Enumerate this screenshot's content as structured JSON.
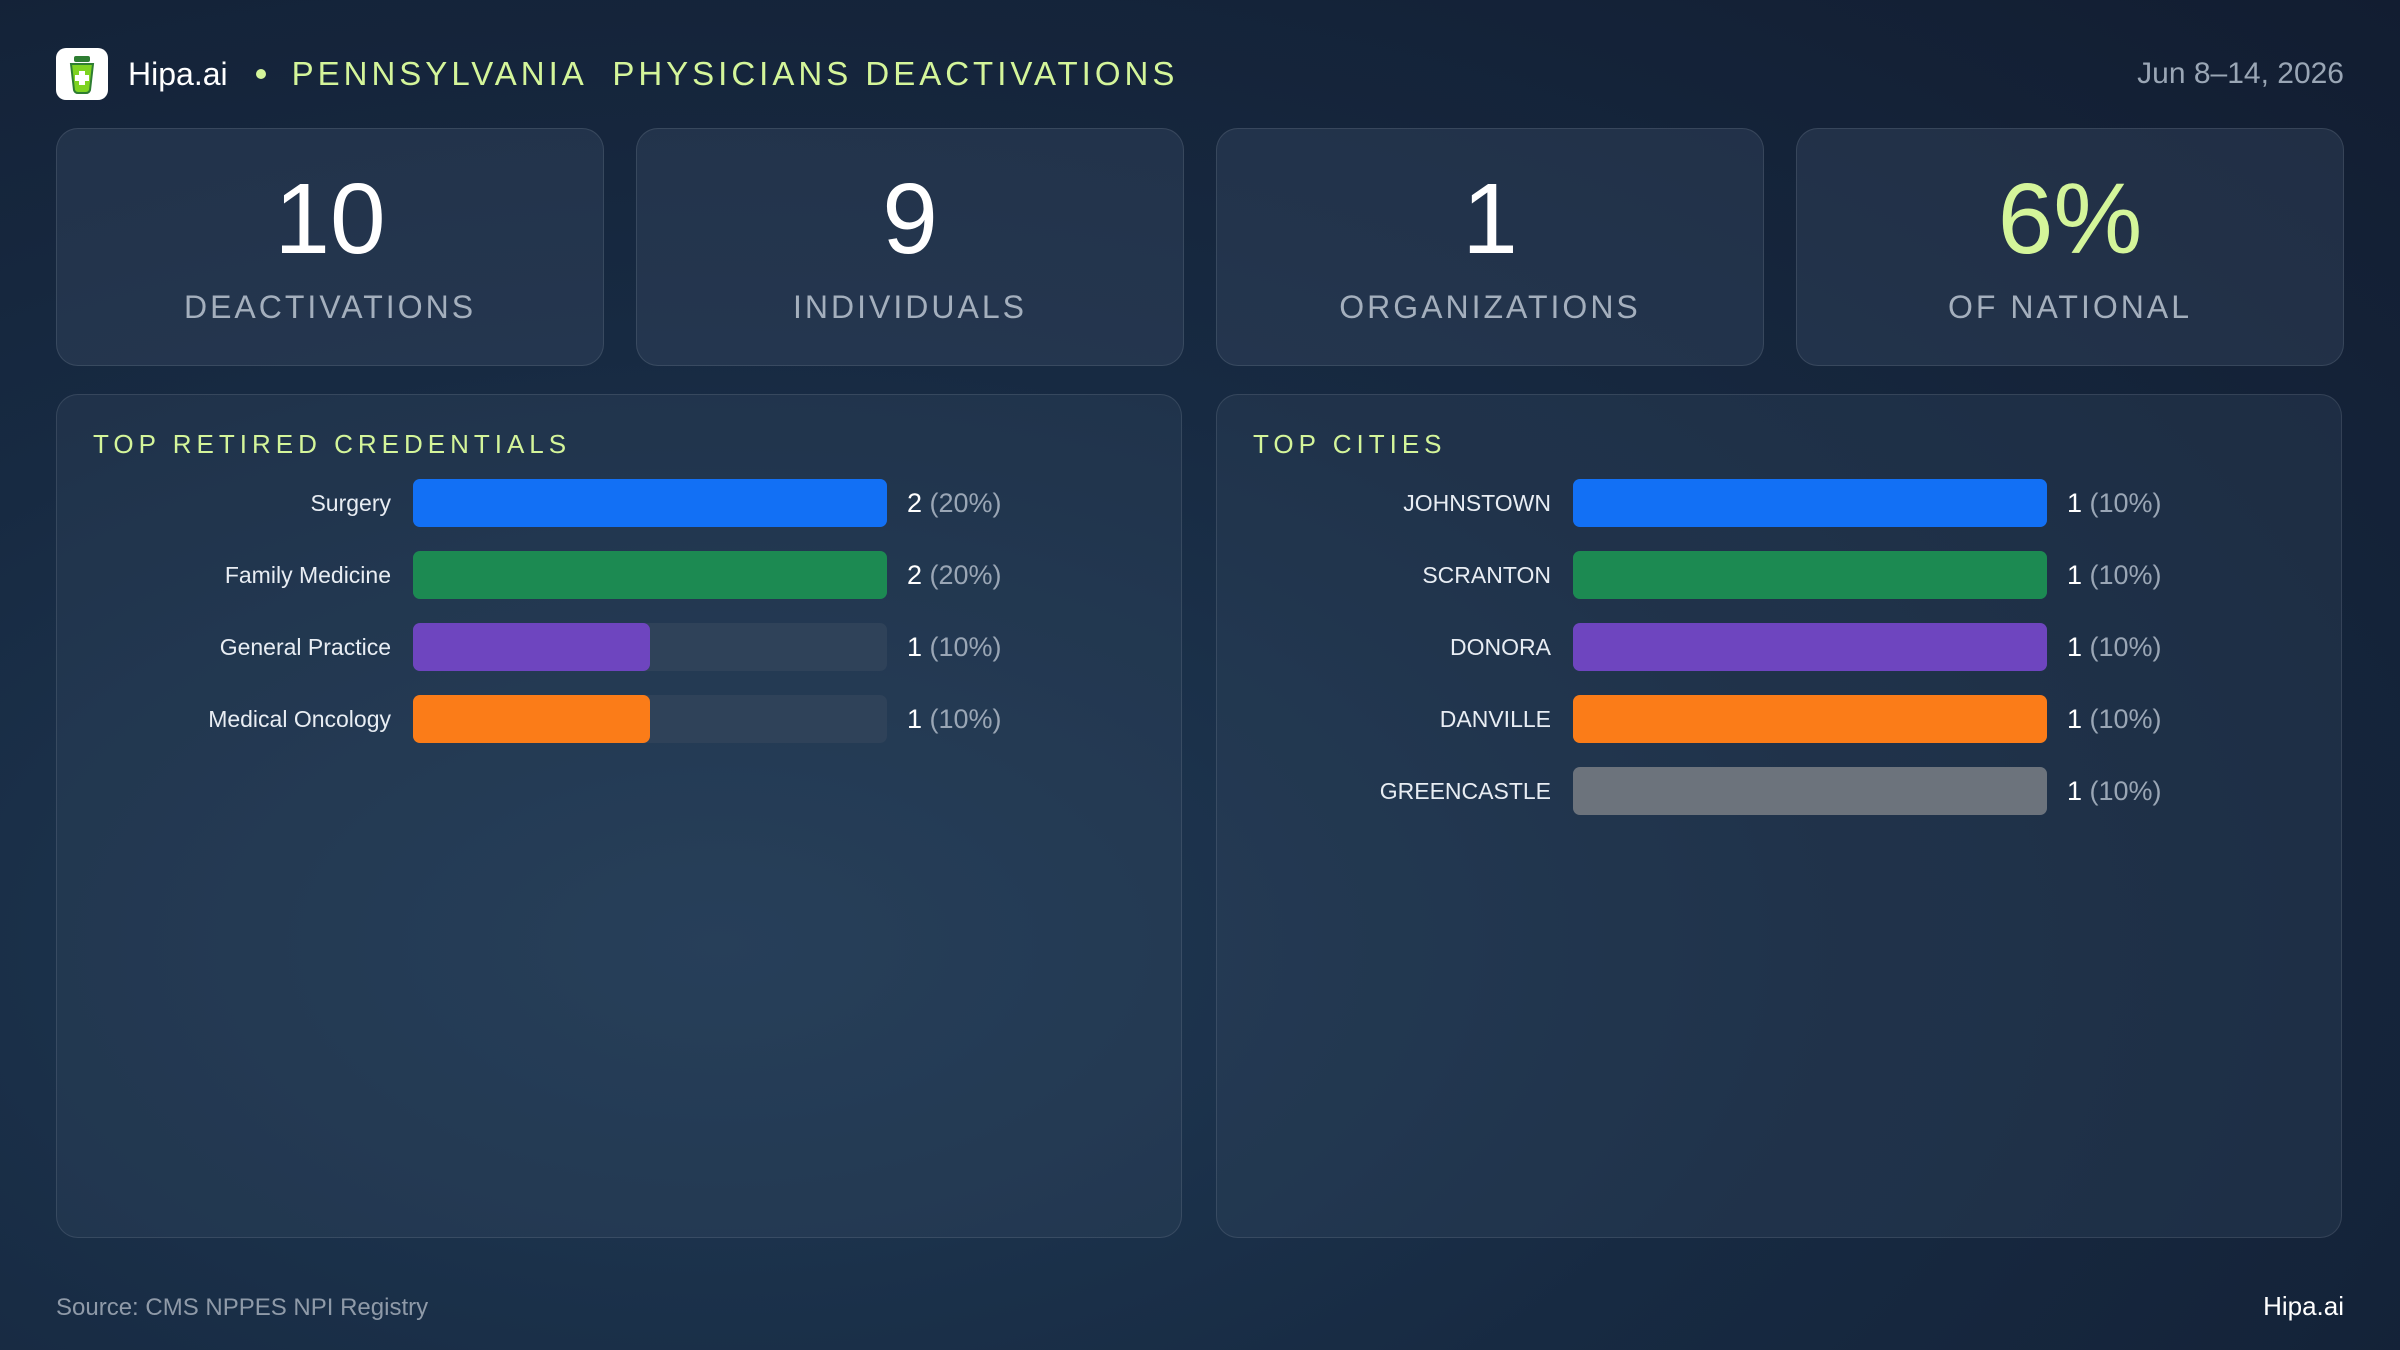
{
  "header": {
    "brand": "Hipa.ai",
    "title": "PENNSYLVANIA  PHYSICIANS DEACTIVATIONS",
    "date": "Jun 8–14, 2026"
  },
  "kpis": [
    {
      "value": "10",
      "label": "DEACTIVATIONS"
    },
    {
      "value": "9",
      "label": "INDIVIDUALS"
    },
    {
      "value": "1",
      "label": "ORGANIZATIONS"
    },
    {
      "value": "6%",
      "label": "OF NATIONAL"
    }
  ],
  "colors": {
    "accent": "#d4f59a",
    "blue": "#1270f5",
    "green": "#1c8a52",
    "purple": "#6e45bf",
    "orange": "#fb7c18",
    "gray": "#6c737c",
    "track": "#2f4259"
  },
  "chart_data": [
    {
      "type": "bar",
      "orientation": "horizontal",
      "title": "TOP RETIRED CREDENTIALS",
      "categories": [
        "Surgery",
        "Family Medicine",
        "General Practice",
        "Medical Oncology"
      ],
      "values": [
        2,
        2,
        1,
        1
      ],
      "percents": [
        "20%",
        "20%",
        "10%",
        "10%"
      ],
      "max": 2,
      "colors": [
        "#1270f5",
        "#1c8a52",
        "#6e45bf",
        "#fb7c18"
      ]
    },
    {
      "type": "bar",
      "orientation": "horizontal",
      "title": "TOP CITIES",
      "categories": [
        "JOHNSTOWN",
        "SCRANTON",
        "DONORA",
        "DANVILLE",
        "GREENCASTLE"
      ],
      "values": [
        1,
        1,
        1,
        1,
        1
      ],
      "percents": [
        "10%",
        "10%",
        "10%",
        "10%",
        "10%"
      ],
      "max": 1,
      "colors": [
        "#1270f5",
        "#1c8a52",
        "#6e45bf",
        "#fb7c18",
        "#6c737c"
      ]
    }
  ],
  "footer": {
    "source": "Source: CMS NPPES NPI Registry",
    "brand": "Hipa.ai"
  }
}
